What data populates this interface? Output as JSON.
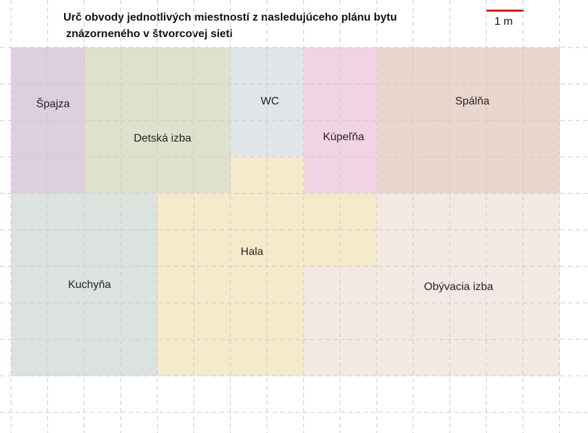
{
  "title": {
    "line1": "Urč obvody jednotlivých miestností z nasledujúceho plánu bytu",
    "line2": "znázorneného v štvorcovej sieti"
  },
  "scale": {
    "label": "1 m",
    "color": "#d11a1a"
  },
  "rooms": [
    {
      "id": "spajza",
      "label": "Špajza",
      "color": "#dccfdf"
    },
    {
      "id": "detska-izba",
      "label": "Detská izba",
      "color": "#e0e1cc"
    },
    {
      "id": "wc",
      "label": "WC",
      "color": "#e0e5e8"
    },
    {
      "id": "kupelna",
      "label": "Kúpeľňa",
      "color": "#f2d3e4"
    },
    {
      "id": "spalna",
      "label": "Spálňa",
      "color": "#ead6cd"
    },
    {
      "id": "kuchyna",
      "label": "Kuchyňa",
      "color": "#dce3df"
    },
    {
      "id": "hala",
      "label": "Hala",
      "color": "#f5ebcb"
    },
    {
      "id": "obyvacia-izba",
      "label": "Obývacia izba",
      "color": "#f4e8e5"
    }
  ],
  "colors": {
    "grid": "#c8c8c8",
    "text": "#222222"
  }
}
